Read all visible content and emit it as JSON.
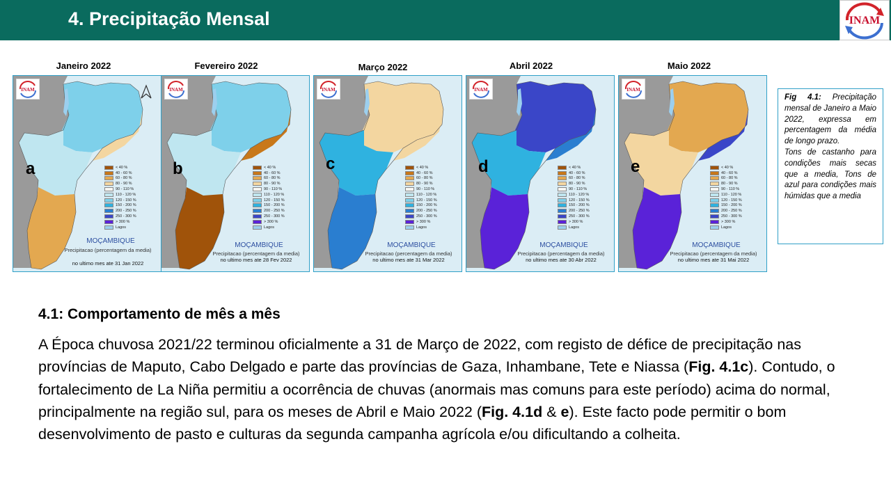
{
  "header": {
    "title": "4. Precipitação Mensal",
    "logo_text": "INAM"
  },
  "maps": [
    {
      "title": "Janeiro 2022",
      "letter": "a",
      "country": "MOÇAMBIQUE",
      "subtitle": "Precipitacao (percentagem da media)",
      "date": "no ultimo mes ate 31 Jan 2022"
    },
    {
      "title": "Fevereiro 2022",
      "letter": "b",
      "country": "MOÇAMBIQUE",
      "subtitle": "Precipitacao (percentagem da media)",
      "date": "no ultimo mes ate 28 Fev 2022"
    },
    {
      "title": "Março 2022",
      "letter": "c",
      "country": "MOÇAMBIQUE",
      "subtitle": "Precipitacao (percentagem da media)",
      "date": "no ultimo mes ate 31 Mar 2022"
    },
    {
      "title": "Abril 2022",
      "letter": "d",
      "country": "MOÇAMBIQUE",
      "subtitle": "Precipitacao (percentagem da media)",
      "date": "no ultimo mes ate 30 Abr 2022"
    },
    {
      "title": "Maio 2022",
      "letter": "e",
      "country": "MOÇAMBIQUE",
      "subtitle": "Precipitacao (percentagem da media)",
      "date": "no ultimo mes ate 31 Mai 2022"
    }
  ],
  "legend": [
    {
      "label": "< 40 %",
      "color": "#a0530a"
    },
    {
      "label": "40 - 60 %",
      "color": "#c8781a"
    },
    {
      "label": "60 - 80 %",
      "color": "#e3a850"
    },
    {
      "label": "80 - 90 %",
      "color": "#f3d6a0"
    },
    {
      "label": "90 - 110 %",
      "color": "#f6f6f2"
    },
    {
      "label": "110 - 120 %",
      "color": "#bfe6f0"
    },
    {
      "label": "120 - 150 %",
      "color": "#7ed0ea"
    },
    {
      "label": "150 - 200 %",
      "color": "#2fb2e0"
    },
    {
      "label": "200 - 250 %",
      "color": "#2a7ed0"
    },
    {
      "label": "250 - 300 %",
      "color": "#3a46c8"
    },
    {
      "label": "> 300 %",
      "color": "#5a22d8"
    },
    {
      "label": "Lagos",
      "color": "#9ccfee"
    }
  ],
  "caption": {
    "fig_label": "Fig 4.1:",
    "text_1": " Precipitação mensal de Janeiro a Maio 2022, expressa em percentagem da média de longo prazo.",
    "text_2": "Tons de castanho para condições mais secas que a media, Tons de azul para condições mais húmidas que a media"
  },
  "section": {
    "heading": "4.1: Comportamento de mês a mês",
    "p1": "A Época chuvosa 2021/22 terminou oficialmente a 31 de Março de 2022, com registo de défice de precipitação nas províncias de Maputo, Cabo Delgado e parte das províncias de Gaza, Inhambane, Tete e Niassa (",
    "ref1": "Fig. 4.1c",
    "p2": "). Contudo, o fortalecimento de La Niña permitiu a ocorrência de chuvas (anormais mas comuns para este período) acima do normal, principalmente na região sul, para os meses de Abril e Maio 2022 (",
    "ref2": "Fig. 4.1d",
    "p3": " & ",
    "ref3": "e",
    "p4": "). Este facto pode permitir o bom desenvolvimento de pasto e culturas da segunda campanha agrícola e/ou dificultando a colheita."
  },
  "colors": {
    "header_bg": "#0a6b5e",
    "panel_border": "#2f9fc7",
    "neighbors": "#9a9a9a"
  },
  "map_fills": [
    {
      "north": "#7ed0ea",
      "center": "#bfe6f0",
      "south": "#e3a850",
      "coast": "#f3d6a0"
    },
    {
      "north": "#7ed0ea",
      "center": "#bfe6f0",
      "south": "#a0530a",
      "coast": "#c8781a"
    },
    {
      "north": "#f3d6a0",
      "center": "#2fb2e0",
      "south": "#2a7ed0",
      "coast": "#f3d6a0"
    },
    {
      "north": "#3a46c8",
      "center": "#2fb2e0",
      "south": "#5a22d8",
      "coast": "#2a7ed0"
    },
    {
      "north": "#e3a850",
      "center": "#f3d6a0",
      "south": "#5a22d8",
      "coast": "#3a46c8"
    }
  ]
}
